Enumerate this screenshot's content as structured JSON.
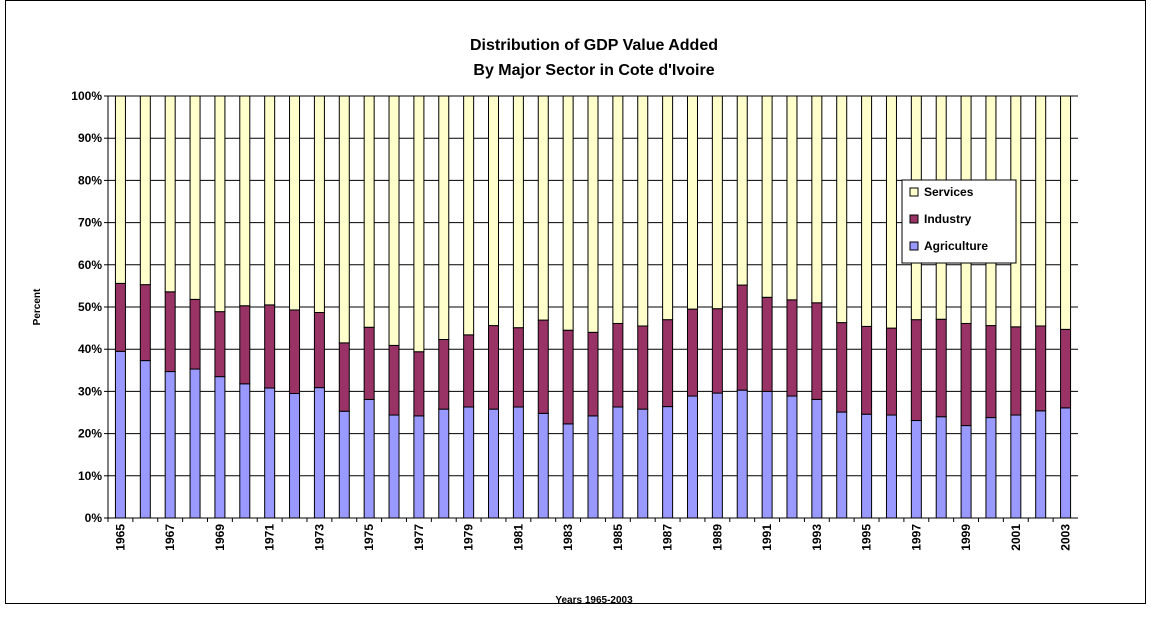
{
  "chart_data": {
    "type": "stacked_bar",
    "title": [
      "Distribution of GDP Value Added",
      "By Major Sector in Cote d'Ivoire"
    ],
    "x_label": "Years 1965-2003",
    "y_label": "Percent",
    "categories": [
      "1965",
      null,
      "1967",
      null,
      "1969",
      null,
      "1971",
      null,
      "1973",
      null,
      "1975",
      null,
      "1977",
      null,
      "1979",
      null,
      "1981",
      null,
      "1983",
      null,
      "1985",
      null,
      "1987",
      null,
      "1989",
      null,
      "1991",
      null,
      "1993",
      null,
      "1995",
      null,
      "1997",
      null,
      "1999",
      null,
      "2001",
      null,
      "2003"
    ],
    "series": [
      {
        "name": "Agriculture",
        "color": "#9999ff",
        "values": [
          39.5,
          37.3,
          34.7,
          35.3,
          33.5,
          31.8,
          30.8,
          29.5,
          30.9,
          25.3,
          28.1,
          24.4,
          24.2,
          25.8,
          26.3,
          25.8,
          26.3,
          24.8,
          22.3,
          24.2,
          26.3,
          25.8,
          26.4,
          28.9,
          29.6,
          30.3,
          30.0,
          28.9,
          28.1,
          25.1,
          24.6,
          24.4,
          23.1,
          24.0,
          21.9,
          23.8,
          24.4,
          25.4,
          26.1
        ]
      },
      {
        "name": "Industry",
        "color": "#993366",
        "values": [
          16.1,
          18.0,
          18.9,
          16.5,
          15.4,
          18.5,
          19.7,
          19.8,
          17.8,
          16.2,
          17.1,
          16.5,
          15.2,
          16.5,
          17.1,
          19.8,
          18.8,
          22.1,
          22.2,
          19.8,
          19.8,
          19.7,
          20.6,
          20.6,
          20.0,
          24.9,
          22.3,
          22.8,
          22.9,
          21.2,
          20.8,
          20.6,
          23.9,
          23.1,
          24.2,
          21.8,
          20.9,
          20.1,
          18.6
        ]
      },
      {
        "name": "Services",
        "color": "#ffffcc",
        "values": [
          44.4,
          44.7,
          46.4,
          48.2,
          51.1,
          49.7,
          49.5,
          50.7,
          51.3,
          58.5,
          54.8,
          59.1,
          60.6,
          57.7,
          56.6,
          54.4,
          54.9,
          53.1,
          55.5,
          56.0,
          53.9,
          54.5,
          53.0,
          50.5,
          50.4,
          44.8,
          47.7,
          48.3,
          49.0,
          53.7,
          54.6,
          55.0,
          53.0,
          52.9,
          53.9,
          54.4,
          54.7,
          54.5,
          55.3
        ]
      }
    ],
    "ylim": [
      0,
      100
    ],
    "yticks": [
      {
        "value": 0,
        "label": "0%"
      },
      {
        "value": 10,
        "label": "10%"
      },
      {
        "value": 20,
        "label": "20%"
      },
      {
        "value": 30,
        "label": "30%"
      },
      {
        "value": 40,
        "label": "40%"
      },
      {
        "value": 50,
        "label": "50%"
      },
      {
        "value": 60,
        "label": "60%"
      },
      {
        "value": 70,
        "label": "70%"
      },
      {
        "value": 80,
        "label": "80%"
      },
      {
        "value": 90,
        "label": "90%"
      },
      {
        "value": 100,
        "label": "100%"
      }
    ],
    "grid": true,
    "legend": "top-right"
  }
}
